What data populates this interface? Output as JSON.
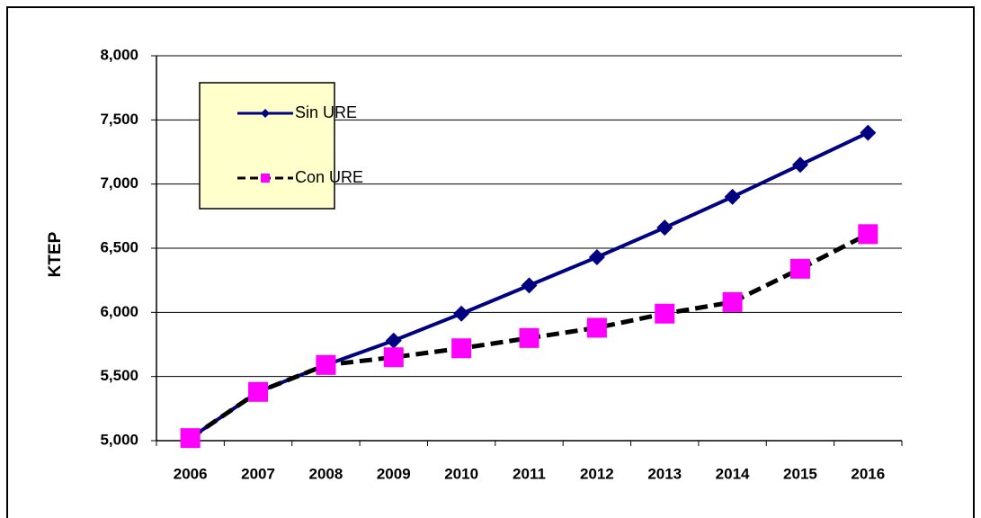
{
  "chart_data": {
    "type": "line",
    "y_label": "KTEP",
    "categories": [
      "2006",
      "2007",
      "2008",
      "2009",
      "2010",
      "2011",
      "2012",
      "2013",
      "2014",
      "2015",
      "2016"
    ],
    "series": [
      {
        "name": "Sin URE",
        "color": "#000080",
        "marker": "diamond",
        "dash": false,
        "values": [
          5020,
          5380,
          5590,
          5780,
          5990,
          6210,
          6430,
          6660,
          6900,
          7150,
          7400
        ]
      },
      {
        "name": "Con URE",
        "color": "#ff00ff",
        "line_color": "#000000",
        "marker": "square",
        "dash": true,
        "values": [
          5020,
          5380,
          5590,
          5650,
          5720,
          5800,
          5880,
          5990,
          6080,
          6340,
          6610
        ]
      }
    ],
    "ylim": [
      5000,
      8000
    ],
    "yticks": [
      {
        "value": 5000,
        "label": "5,000"
      },
      {
        "value": 5500,
        "label": "5,500"
      },
      {
        "value": 6000,
        "label": "6,000"
      },
      {
        "value": 6500,
        "label": "6,500"
      },
      {
        "value": 7000,
        "label": "7,000"
      },
      {
        "value": 7500,
        "label": "7,500"
      },
      {
        "value": 8000,
        "label": "8,000"
      }
    ],
    "grid": true,
    "legend": "upper left"
  }
}
